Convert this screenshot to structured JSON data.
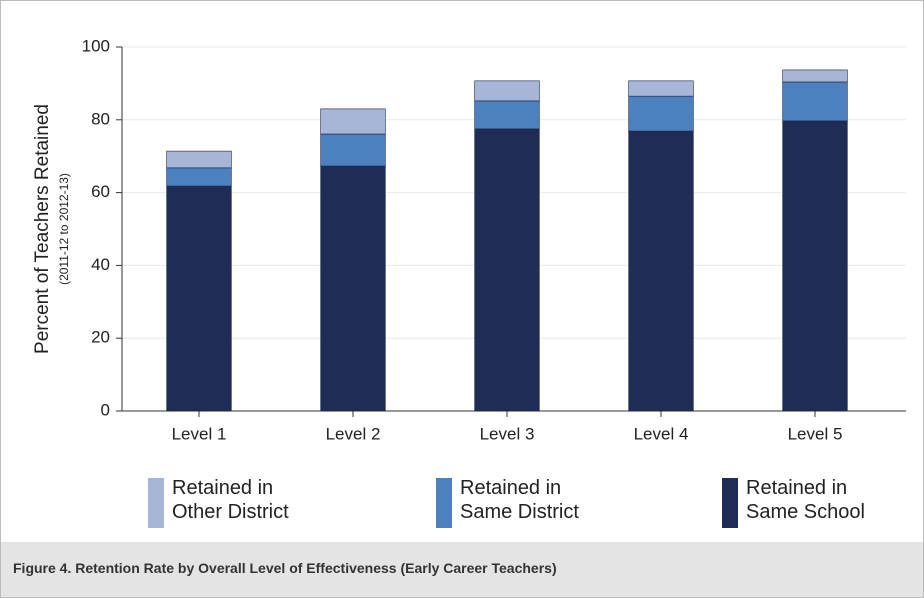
{
  "chart_data": {
    "type": "stacked_bar",
    "caption": "Figure 4. Retention Rate by Overall Level of Effectiveness (Early Career Teachers)",
    "ylabel": "Percent of Teachers Retained",
    "ylabel_sub": "(2011-12 to 2012-13)",
    "categories": [
      "Level 1",
      "Level 2",
      "Level 3",
      "Level 4",
      "Level 5"
    ],
    "series": [
      {
        "name": "Retained in Other District",
        "color": "#a7b6d7",
        "values": [
          4.6,
          6.9,
          5.5,
          4.2,
          3.3
        ]
      },
      {
        "name": "Retained in Same District",
        "color": "#4d80bf",
        "values": [
          5,
          8.8,
          7.7,
          9.6,
          10.7
        ]
      },
      {
        "name": "Retained in Same School",
        "color": "#1f2c55",
        "values": [
          61.8,
          67.3,
          77.5,
          76.9,
          79.7
        ]
      }
    ],
    "ylim": [
      0,
      100
    ],
    "yticks": [
      0,
      20,
      40,
      60,
      80,
      100
    ],
    "grid": true
  }
}
